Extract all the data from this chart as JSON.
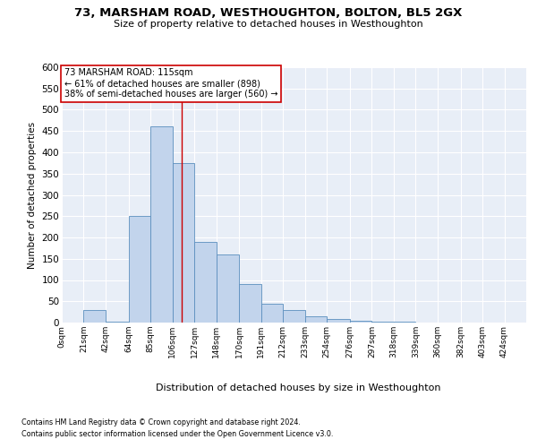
{
  "title": "73, MARSHAM ROAD, WESTHOUGHTON, BOLTON, BL5 2GX",
  "subtitle": "Size of property relative to detached houses in Westhoughton",
  "xlabel": "Distribution of detached houses by size in Westhoughton",
  "ylabel": "Number of detached properties",
  "footnote1": "Contains HM Land Registry data © Crown copyright and database right 2024.",
  "footnote2": "Contains public sector information licensed under the Open Government Licence v3.0.",
  "annotation_line1": "73 MARSHAM ROAD: 115sqm",
  "annotation_line2": "← 61% of detached houses are smaller (898)",
  "annotation_line3": "38% of semi-detached houses are larger (560) →",
  "bar_color": "#c2d4ec",
  "bar_edge_color": "#5b8fbe",
  "ref_line_color": "#cc0000",
  "ref_line_x": 115,
  "categories": [
    "0sqm",
    "21sqm",
    "42sqm",
    "64sqm",
    "85sqm",
    "106sqm",
    "127sqm",
    "148sqm",
    "170sqm",
    "191sqm",
    "212sqm",
    "233sqm",
    "254sqm",
    "276sqm",
    "297sqm",
    "318sqm",
    "339sqm",
    "360sqm",
    "382sqm",
    "403sqm",
    "424sqm"
  ],
  "bin_edges": [
    0,
    21,
    42,
    64,
    85,
    106,
    127,
    148,
    170,
    191,
    212,
    233,
    254,
    276,
    297,
    318,
    339,
    360,
    382,
    403,
    424,
    445
  ],
  "values": [
    1,
    30,
    2,
    250,
    460,
    375,
    190,
    160,
    90,
    45,
    30,
    15,
    8,
    5,
    2,
    2,
    0,
    1,
    0,
    0,
    1
  ],
  "ylim": [
    0,
    600
  ],
  "yticks": [
    0,
    50,
    100,
    150,
    200,
    250,
    300,
    350,
    400,
    450,
    500,
    550,
    600
  ],
  "ax_bg": "#e8eef7",
  "grid_color": "#ffffff",
  "title_fontsize": 9.5,
  "subtitle_fontsize": 8,
  "ylabel_fontsize": 7.5,
  "xlabel_fontsize": 8,
  "ytick_fontsize": 7.5,
  "xtick_fontsize": 6.5,
  "footnote_fontsize": 5.8
}
